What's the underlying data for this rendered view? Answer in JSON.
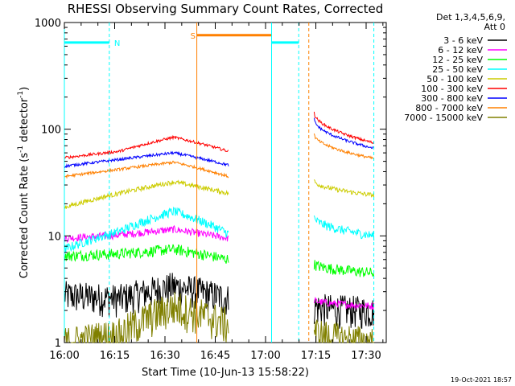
{
  "chart_data": {
    "type": "line",
    "title": "RHESSI Observing Summary Count Rates, Corrected",
    "xlabel": "Start Time (10-Jun-13 15:58:22)",
    "ylabel_main": "Corrected Count Rate (s",
    "ylabel_sup1": "-1",
    "ylabel_mid": " detector",
    "ylabel_sup2": "-1",
    "ylabel_end": ")",
    "y_scale": "log",
    "ylim": [
      1,
      1000
    ],
    "xlim_minutes": [
      0,
      96
    ],
    "x_ticks": [
      {
        "m": 0,
        "label": "16:00"
      },
      {
        "m": 15,
        "label": "16:15"
      },
      {
        "m": 30,
        "label": "16:30"
      },
      {
        "m": 45,
        "label": "16:45"
      },
      {
        "m": 60,
        "label": "17:00"
      },
      {
        "m": 75,
        "label": "17:15"
      },
      {
        "m": 90,
        "label": "17:30"
      }
    ],
    "y_ticks": [
      {
        "v": 1,
        "label": "1"
      },
      {
        "v": 10,
        "label": "10"
      },
      {
        "v": 100,
        "label": "100"
      },
      {
        "v": 1000,
        "label": "1000"
      }
    ],
    "legend_header": [
      "Det 1,3,4,5,6,9,",
      "Att 0"
    ],
    "legend_placement": "top-right",
    "series": [
      {
        "name": "3 - 6 keV",
        "color": "#000000",
        "p1": [
          2.8,
          2.6,
          3.4,
          2.6
        ],
        "p2": [
          2.2,
          2.0
        ],
        "noise": 0.35
      },
      {
        "name": "6 - 12 keV",
        "color": "#ff00ff",
        "p1": [
          9.5,
          10.2,
          11.5,
          9.5
        ],
        "p2": [
          2.5,
          2.2
        ],
        "noise": 0.08
      },
      {
        "name": "12 - 25 keV",
        "color": "#00ff00",
        "p1": [
          6.5,
          6.8,
          7.5,
          6.0
        ],
        "p2": [
          5.5,
          4.5
        ],
        "noise": 0.12
      },
      {
        "name": "25 - 50 keV",
        "color": "#00ffff",
        "p1": [
          7.5,
          11.0,
          17.0,
          10.5
        ],
        "p2": [
          15.0,
          10.0
        ],
        "noise": 0.1
      },
      {
        "name": "50 - 100 keV",
        "color": "#cccc00",
        "p1": [
          18.5,
          25.0,
          32.0,
          25.0
        ],
        "p2": [
          33.0,
          24.0
        ],
        "noise": 0.05
      },
      {
        "name": "100 - 300 keV",
        "color": "#ff0000",
        "p1": [
          54.0,
          62.0,
          84.0,
          62.0
        ],
        "p2": [
          145.0,
          74.0
        ],
        "noise": 0.03
      },
      {
        "name": "300 - 800 keV",
        "color": "#0000ff",
        "p1": [
          45.0,
          52.0,
          60.0,
          46.0
        ],
        "p2": [
          125.0,
          66.0
        ],
        "noise": 0.03
      },
      {
        "name": "800 - 7000 keV",
        "color": "#ff8000",
        "p1": [
          36.0,
          42.0,
          49.0,
          36.0
        ],
        "p2": [
          90.0,
          53.0
        ],
        "noise": 0.03
      },
      {
        "name": "7000 - 15000 keV",
        "color": "#808000",
        "p1": [
          1.0,
          1.2,
          2.2,
          1.5
        ],
        "p2": [
          1.3,
          1.0
        ],
        "noise": 0.4
      }
    ],
    "annotations": [
      {
        "label": "N",
        "color": "#00ffff",
        "start_m": 0,
        "end_m": 13.4,
        "level": 650
      },
      {
        "label": "S",
        "color": "#ff8000",
        "start_m": 39.5,
        "end_m": 61.8,
        "level": 760
      },
      {
        "label": "",
        "color": "#00ffff",
        "start_m": 61.8,
        "end_m": 69.9,
        "level": 650
      }
    ],
    "footer_date": "19-Oct-2021 18:57"
  }
}
